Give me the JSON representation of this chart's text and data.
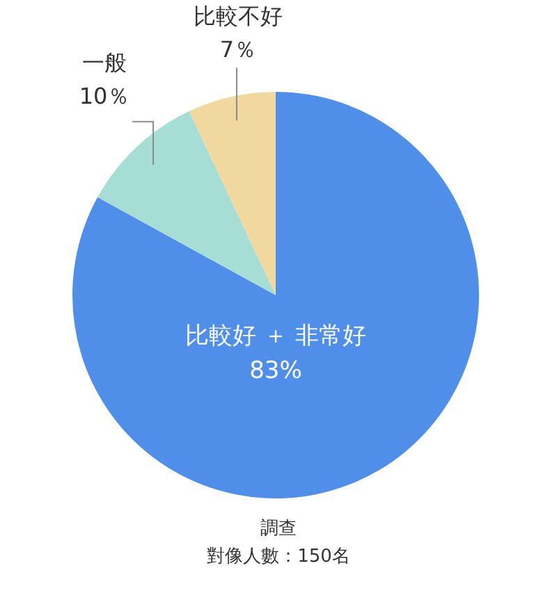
{
  "chart_data": {
    "type": "pie",
    "categories": [
      "比較好 ＋ 非常好",
      "一般",
      "比較不好"
    ],
    "values": [
      83,
      10,
      7
    ],
    "colors": [
      "#4f8fea",
      "#a6ddd5",
      "#f0d89e"
    ],
    "value_labels": [
      "83%",
      "10％",
      "7％"
    ],
    "annotations": [
      "調查",
      "對像人數：150名"
    ]
  }
}
